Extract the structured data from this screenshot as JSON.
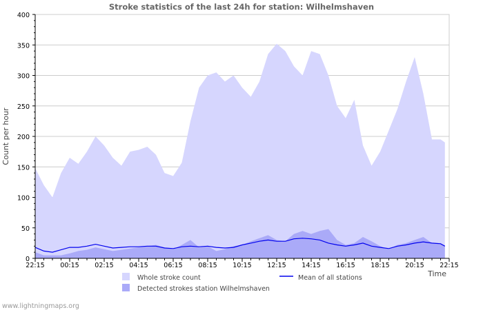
{
  "chart_data": {
    "type": "area",
    "title": "Stroke statistics of the last 24h for station: Wilhelmshaven",
    "xlabel": "Time",
    "ylabel": "Count per hour",
    "ylim": [
      0,
      400
    ],
    "yticks": [
      0,
      50,
      100,
      150,
      200,
      250,
      300,
      350,
      400
    ],
    "xtick_labels": [
      "22:15",
      "00:15",
      "02:15",
      "04:15",
      "06:15",
      "08:15",
      "10:15",
      "12:15",
      "14:15",
      "16:15",
      "18:15",
      "20:15",
      "22:15"
    ],
    "x_hours": [
      0,
      0.5,
      1,
      1.5,
      2,
      2.5,
      3,
      3.5,
      4,
      4.5,
      5,
      5.5,
      6,
      6.5,
      7,
      7.5,
      8,
      8.5,
      9,
      9.5,
      10,
      10.5,
      11,
      11.5,
      12,
      12.5,
      13,
      13.5,
      14,
      14.5,
      15,
      15.5,
      16,
      16.5,
      17,
      17.5,
      18,
      18.5,
      19,
      19.5,
      20,
      20.5,
      21,
      21.5,
      22,
      22.5,
      23,
      23.5,
      23.75
    ],
    "series": [
      {
        "name": "Whole stroke count",
        "kind": "area",
        "color": "#d6d6fe",
        "values": [
          148,
          120,
          100,
          140,
          165,
          155,
          175,
          200,
          185,
          165,
          152,
          175,
          178,
          183,
          170,
          140,
          135,
          157,
          225,
          280,
          300,
          305,
          290,
          300,
          280,
          265,
          290,
          335,
          352,
          340,
          315,
          300,
          340,
          335,
          300,
          250,
          230,
          260,
          185,
          152,
          175,
          210,
          245,
          290,
          330,
          270,
          195,
          195,
          190
        ]
      },
      {
        "name": "Detected strokes station Wilhelmshaven",
        "kind": "area",
        "color": "#aaaaf8",
        "values": [
          10,
          5,
          5,
          5,
          8,
          12,
          14,
          18,
          15,
          12,
          14,
          16,
          18,
          20,
          22,
          18,
          15,
          22,
          30,
          18,
          20,
          12,
          15,
          20,
          22,
          28,
          33,
          38,
          30,
          28,
          40,
          45,
          40,
          45,
          48,
          30,
          22,
          25,
          35,
          28,
          20,
          15,
          22,
          25,
          30,
          35,
          25,
          25,
          20
        ]
      },
      {
        "name": "Mean of all stations",
        "kind": "line",
        "color": "#0000ee",
        "values": [
          18,
          12,
          10,
          14,
          18,
          18,
          20,
          23,
          20,
          17,
          18,
          19,
          19,
          20,
          20,
          17,
          16,
          19,
          20,
          19,
          20,
          18,
          17,
          18,
          22,
          25,
          28,
          30,
          28,
          28,
          32,
          33,
          32,
          30,
          25,
          22,
          20,
          22,
          25,
          20,
          18,
          16,
          20,
          22,
          25,
          27,
          25,
          24,
          20
        ]
      }
    ],
    "grid": true,
    "legend_position": "bottom"
  },
  "footer": "www.lightningmaps.org"
}
